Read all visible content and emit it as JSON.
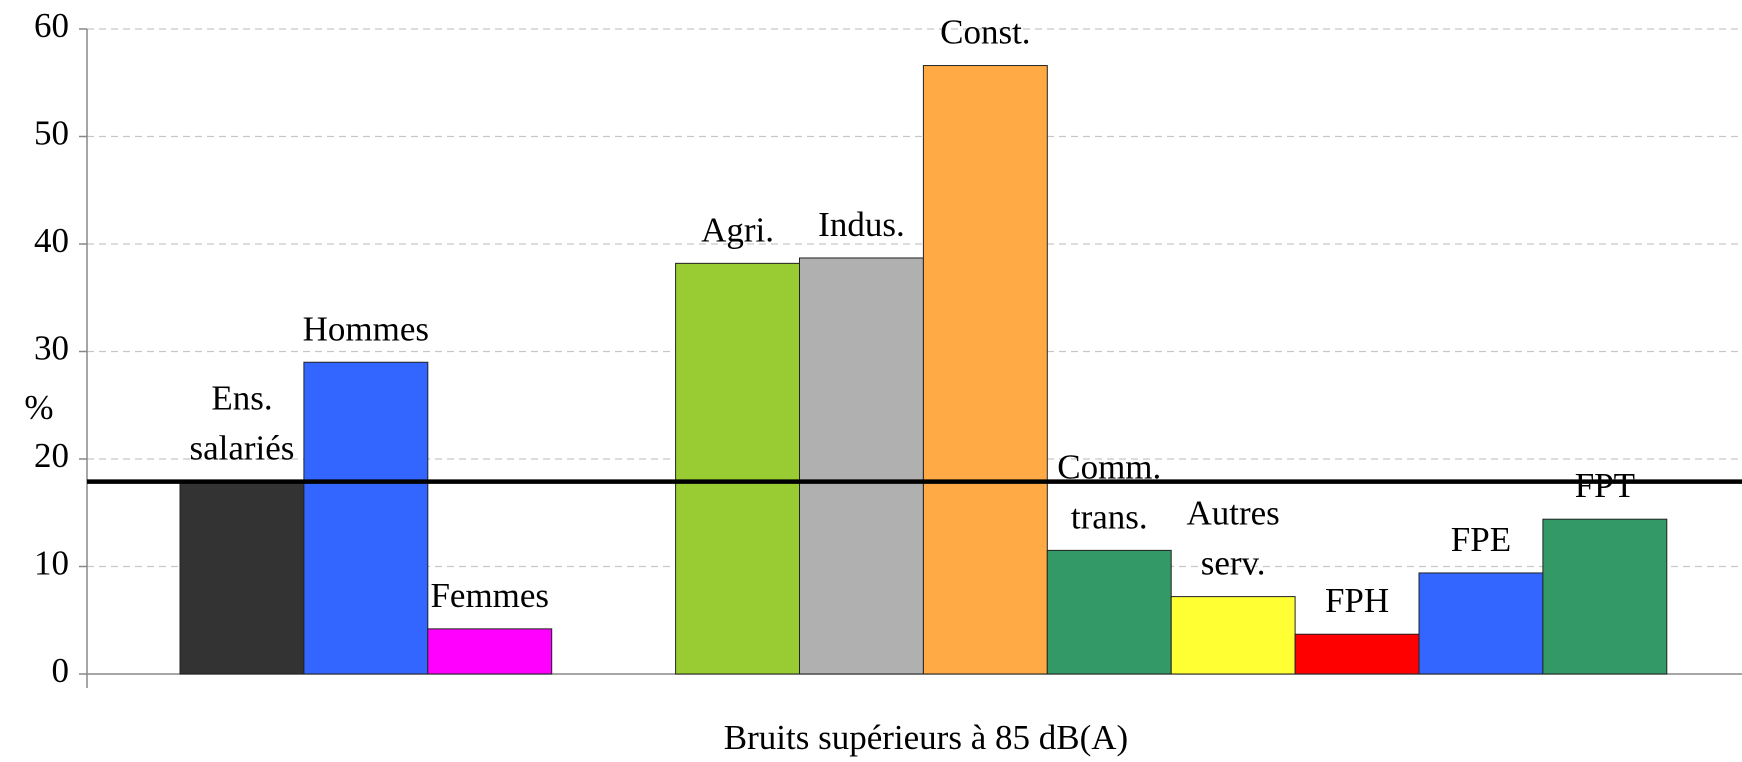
{
  "chart_data": {
    "type": "bar",
    "ylabel": "%",
    "xlabel": "Bruits supérieurs à 85 dB(A)",
    "categories": [
      [
        "Ens.",
        "salariés"
      ],
      [
        "Hommes"
      ],
      [
        "Femmes"
      ],
      null,
      [
        "Agri."
      ],
      [
        "Indus."
      ],
      [
        "Const."
      ],
      [
        "Comm.",
        "trans."
      ],
      [
        "Autres",
        "serv."
      ],
      [
        "FPH"
      ],
      [
        "FPE"
      ],
      [
        "FPT"
      ]
    ],
    "values": [
      17.9,
      29.0,
      4.2,
      null,
      38.2,
      38.7,
      56.6,
      11.5,
      7.2,
      3.7,
      9.4,
      14.4
    ],
    "colors": [
      "#333333",
      "#3366ff",
      "#ff00ff",
      null,
      "#99cc33",
      "#b0b0b0",
      "#ffaa44",
      "#339966",
      "#ffff33",
      "#ff0000",
      "#3366ff",
      "#339966"
    ],
    "reference_line": 17.9,
    "ylim": [
      0,
      60
    ],
    "yticks": [
      0,
      10,
      20,
      30,
      40,
      50,
      60
    ],
    "grid": true
  }
}
